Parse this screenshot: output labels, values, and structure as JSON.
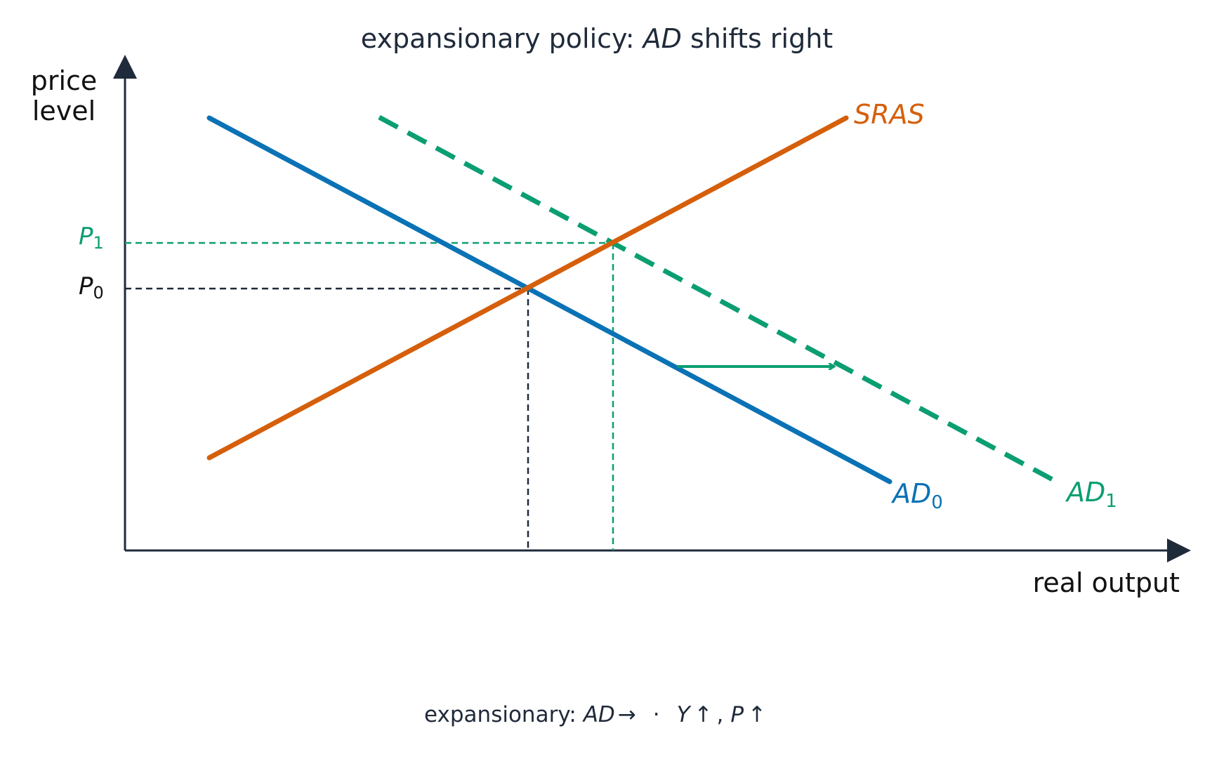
{
  "title": {
    "prefix": "expansionary policy: ",
    "emph": "AD",
    "suffix": " shifts right"
  },
  "axes": {
    "y_label_line1": "price",
    "y_label_line2": "level",
    "x_label": "real output"
  },
  "curves": {
    "sras": "SRAS",
    "ad0_main": "AD",
    "ad0_sub": "0",
    "ad1_main": "AD",
    "ad1_sub": "1"
  },
  "price_levels": {
    "p1_main": "P",
    "p1_sub": "1",
    "p0_main": "P",
    "p0_sub": "0"
  },
  "caption": {
    "prefix": "expansionary: ",
    "ad": "AD",
    "arrow": "→",
    "dot": "·",
    "y": "Y",
    "up1": "↑",
    "comma": ",",
    "p": "P",
    "up2": "↑"
  },
  "colors": {
    "axis": "#1f2a3a",
    "ad0": "#0a72b5",
    "ad1": "#0b9e72",
    "sras": "#d55f0b",
    "text": "#1f2a3a"
  }
}
